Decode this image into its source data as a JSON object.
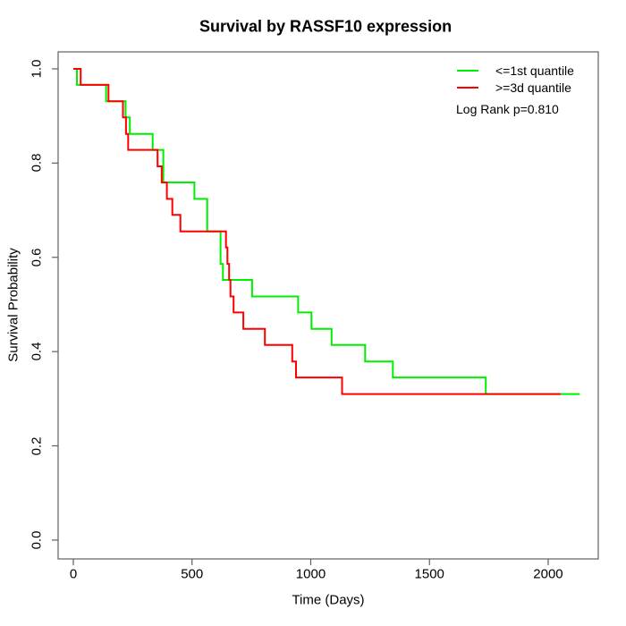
{
  "title": "Survival by RASSF10 expression",
  "legend": {
    "entries": [
      {
        "label": "<=1st quantile",
        "color": "#00ee00"
      },
      {
        "label": ">=3d quantile",
        "color": "#ff0000"
      }
    ],
    "note": "Log Rank p=0.810"
  },
  "chart_data": {
    "type": "line",
    "subtype": "kaplan-meier-step-curves",
    "title": "Survival by RASSF10 expression",
    "xlabel": "Time (Days)",
    "ylabel": "Survival Probability",
    "xticks": [
      0,
      500,
      1000,
      1500,
      2000
    ],
    "yticks": [
      "0.0",
      "0.2",
      "0.4",
      "0.6",
      "0.8",
      "1.0"
    ],
    "xlim": [
      -64,
      2211
    ],
    "ylim": [
      -0.04,
      1.036
    ],
    "grid": false,
    "legend_position": "top-right",
    "frame_color": "#606060",
    "series": [
      {
        "name": "<=1st quantile",
        "color": "#00ee00",
        "end_time": 2133,
        "steps": [
          [
            0,
            1.0
          ],
          [
            15,
            0.966
          ],
          [
            138,
            0.931
          ],
          [
            220,
            0.897
          ],
          [
            238,
            0.862
          ],
          [
            334,
            0.828
          ],
          [
            379,
            0.759
          ],
          [
            510,
            0.724
          ],
          [
            564,
            0.655
          ],
          [
            620,
            0.586
          ],
          [
            630,
            0.552
          ],
          [
            753,
            0.517
          ],
          [
            947,
            0.483
          ],
          [
            1003,
            0.448
          ],
          [
            1088,
            0.414
          ],
          [
            1229,
            0.379
          ],
          [
            1346,
            0.345
          ],
          [
            1737,
            0.31
          ]
        ]
      },
      {
        "name": ">=3d quantile",
        "color": "#ff0000",
        "end_time": 2052,
        "steps": [
          [
            0,
            1.0
          ],
          [
            31,
            0.966
          ],
          [
            148,
            0.931
          ],
          [
            209,
            0.897
          ],
          [
            222,
            0.862
          ],
          [
            231,
            0.828
          ],
          [
            355,
            0.793
          ],
          [
            372,
            0.759
          ],
          [
            394,
            0.724
          ],
          [
            417,
            0.69
          ],
          [
            451,
            0.655
          ],
          [
            643,
            0.621
          ],
          [
            649,
            0.586
          ],
          [
            656,
            0.552
          ],
          [
            662,
            0.517
          ],
          [
            675,
            0.483
          ],
          [
            716,
            0.448
          ],
          [
            807,
            0.414
          ],
          [
            922,
            0.379
          ],
          [
            938,
            0.345
          ],
          [
            1132,
            0.31
          ]
        ]
      }
    ]
  }
}
